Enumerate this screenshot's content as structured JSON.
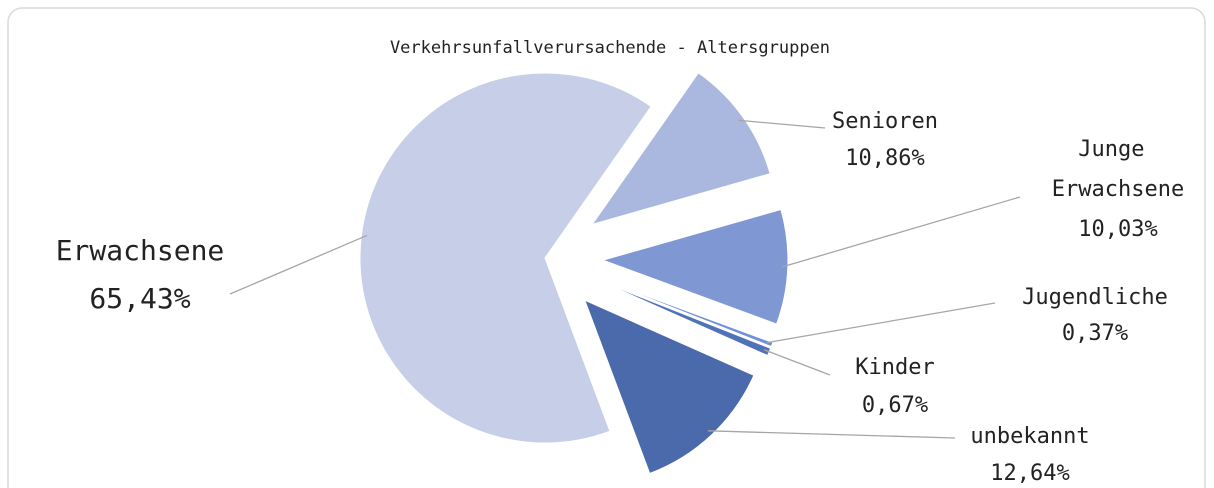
{
  "chart_data": {
    "type": "pie",
    "title": "Verkehrsunfallverursachende - Altersgruppen",
    "categories": [
      "Senioren",
      "Junge Erwachsene",
      "Jugendliche",
      "Kinder",
      "unbekannt",
      "Erwachsene"
    ],
    "values": [
      10.86,
      10.03,
      0.37,
      0.67,
      12.64,
      65.43
    ],
    "value_labels": [
      "10,86%",
      "10,03%",
      "0,37%",
      "0,67%",
      "12,64%",
      "65,43%"
    ],
    "colors": [
      "#aab7de",
      "#7f97d2",
      "#7090d8",
      "#4f72b8",
      "#4a6aab",
      "#c6cee8"
    ]
  }
}
